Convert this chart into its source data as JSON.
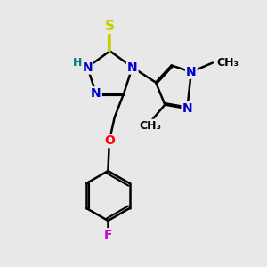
{
  "bg_color": "#e8e8e8",
  "atom_colors": {
    "C": "#000000",
    "N": "#0000cc",
    "S": "#cccc00",
    "O": "#ff0000",
    "F": "#cc00cc",
    "H": "#008080"
  },
  "bond_color": "#000000",
  "bond_width": 1.8,
  "font_size_atom": 10,
  "font_size_small": 9
}
